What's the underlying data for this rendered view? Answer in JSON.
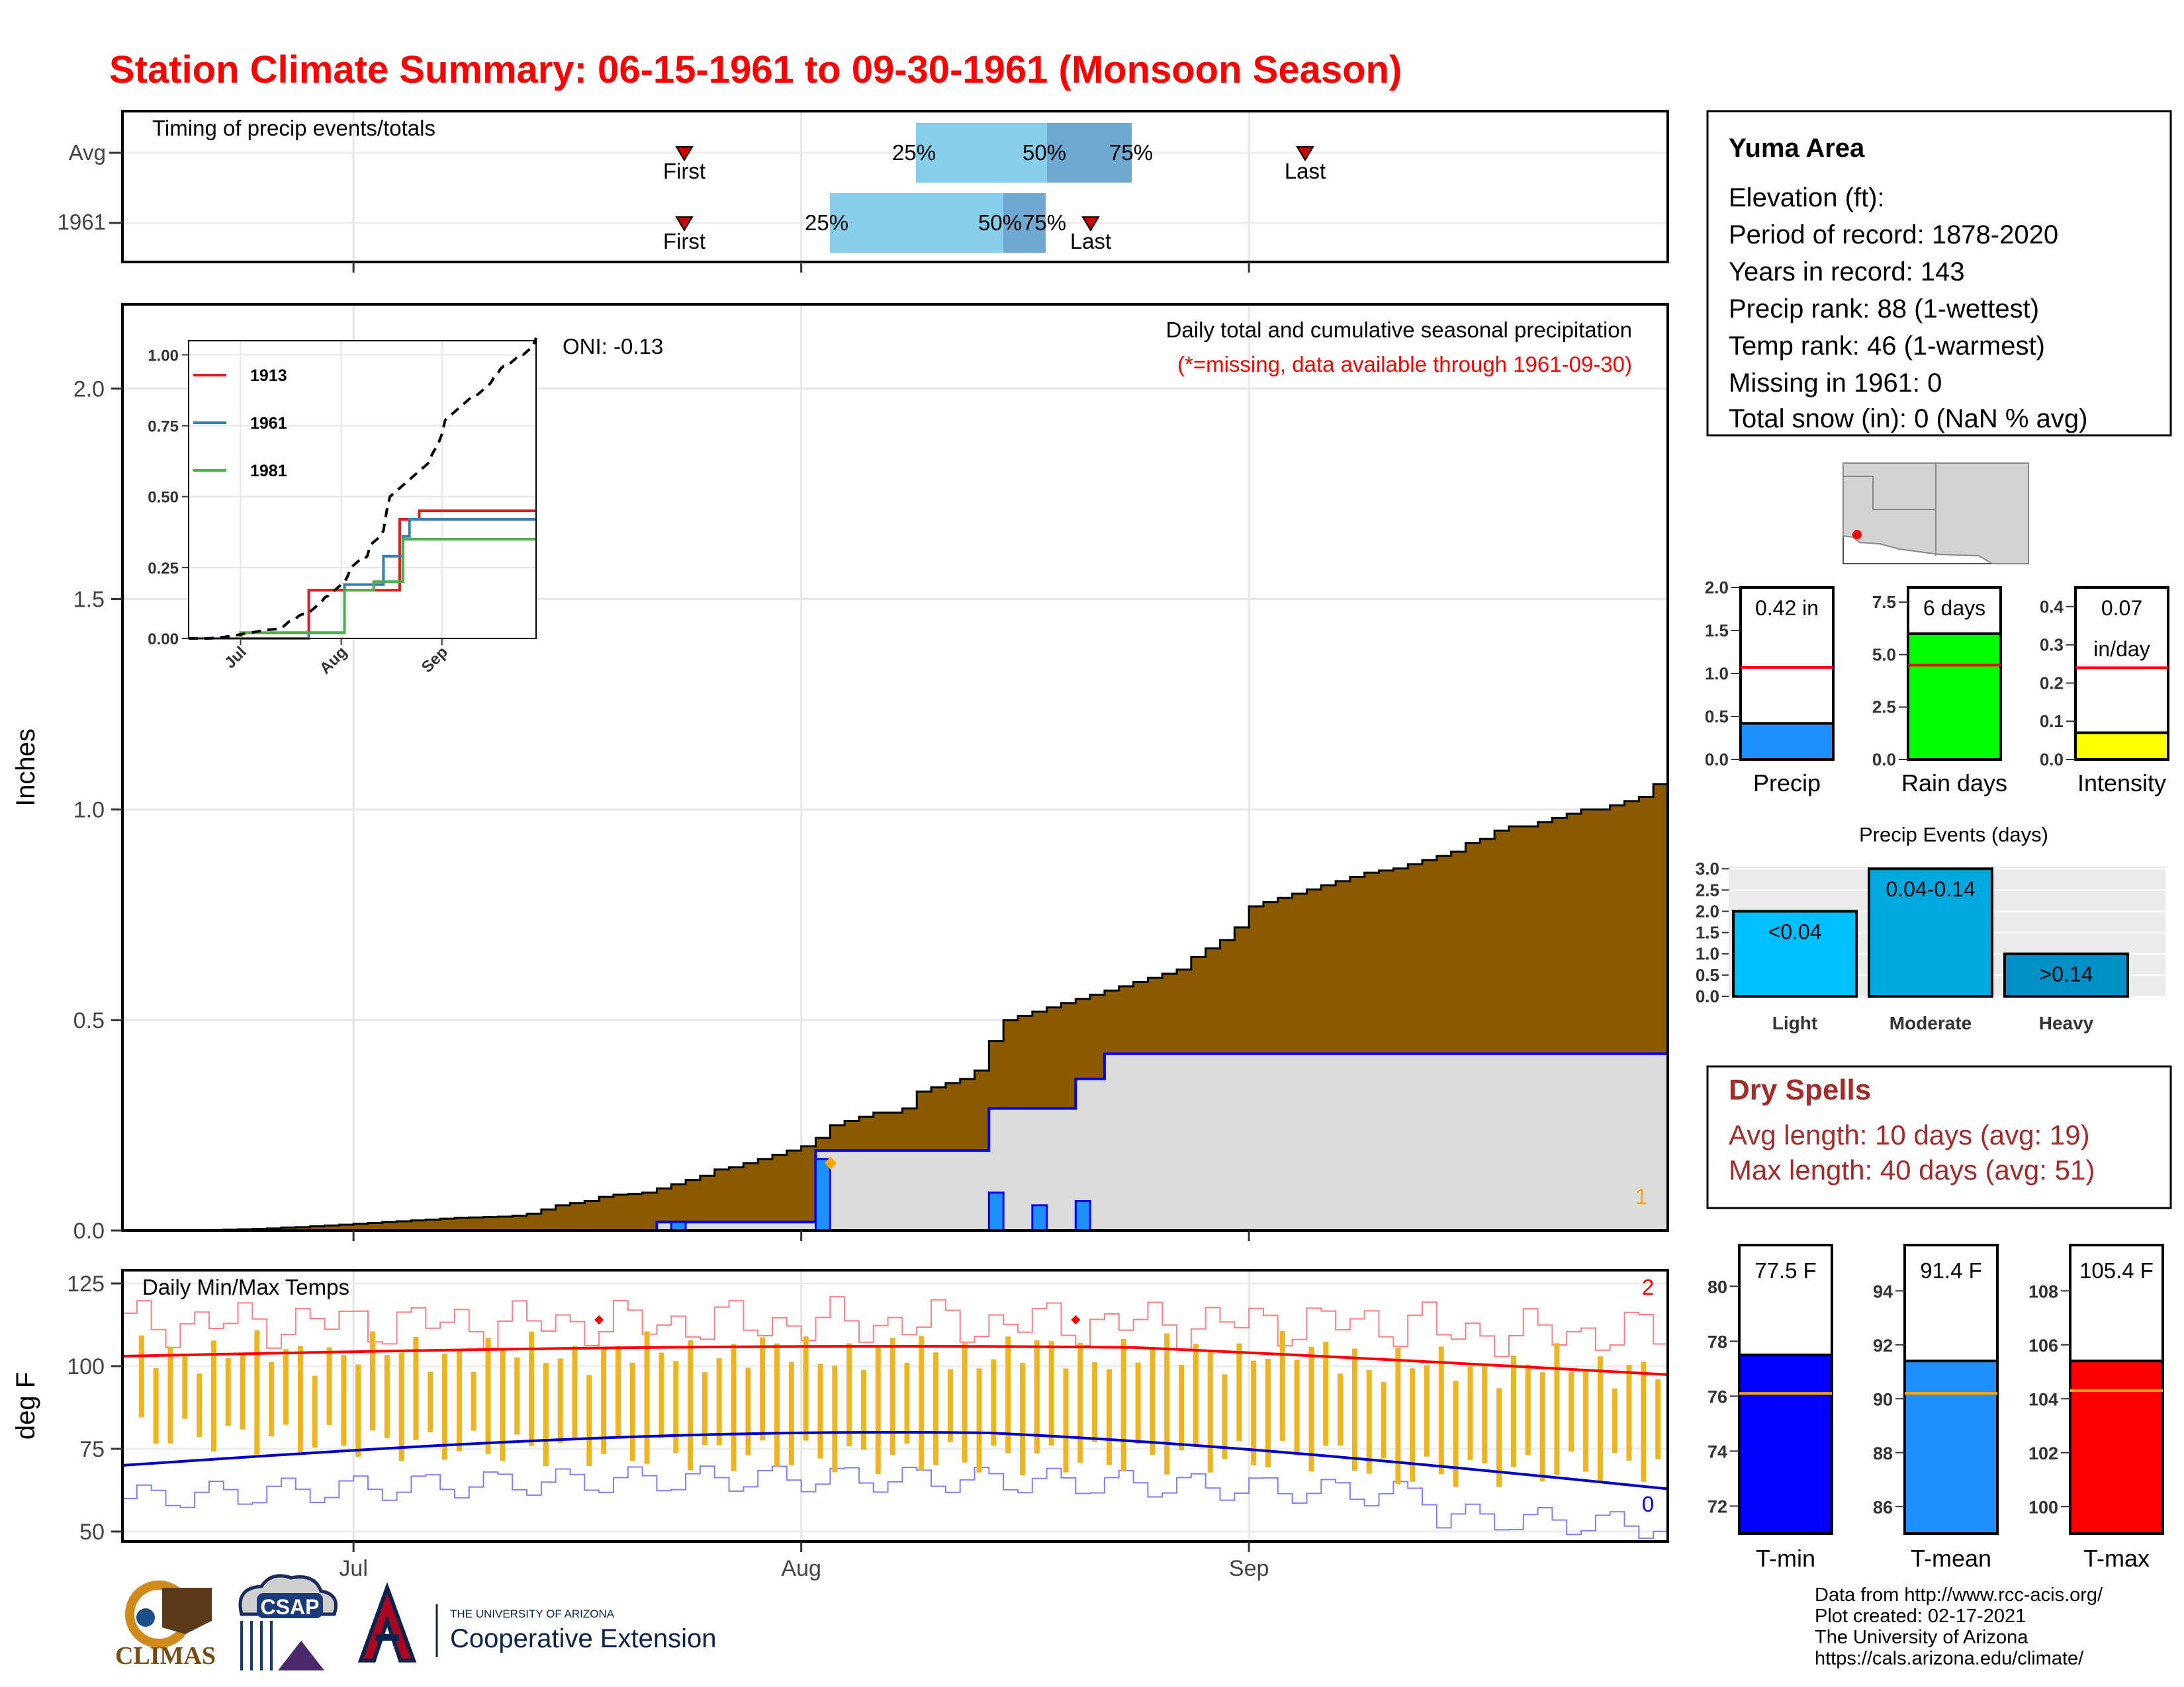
{
  "title": "Station Climate Summary: 06-15-1961 to 09-30-1961 (Monsoon Season)",
  "colors": {
    "title": "#ff0000",
    "precip_fill": "#8b5a00",
    "obs_fill": "#dcdcdc",
    "obs_line": "#0000ff",
    "daily_bar": "#1e90ff"
  },
  "timing_panel": {
    "title": "Timing of precip events/totals",
    "row_labels": [
      "Avg",
      "1961"
    ],
    "avg": {
      "first_label": "First",
      "last_label": "Last",
      "p25": "25%",
      "p50": "50%",
      "p75": "75%"
    },
    "y1961": {
      "first_label": "First",
      "last_label": "Last",
      "p25": "25%",
      "p50": "50%",
      "p75": "75%"
    }
  },
  "main_panel": {
    "annotation_title": "Daily total and cumulative seasonal precipitation",
    "annotation_missing": "(*=missing, data available through 1961-09-30)",
    "oni": "ONI: -0.13",
    "y_label": "Inches",
    "y_ticks": [
      "0.0",
      "0.5",
      "1.0",
      "1.5",
      "2.0"
    ],
    "count_label": "1"
  },
  "inset": {
    "y_ticks": [
      "0.00",
      "0.25",
      "0.50",
      "0.75",
      "1.00"
    ],
    "x_ticks": [
      "Jul",
      "Aug",
      "Sep"
    ],
    "legend": [
      {
        "label": "1913",
        "color": "#e41a1c"
      },
      {
        "label": "1961",
        "color": "#377eb8"
      },
      {
        "label": "1981",
        "color": "#4daf4a"
      }
    ]
  },
  "temp_panel": {
    "title": "Daily Min/Max Temps",
    "y_label": "deg F",
    "y_ticks": [
      "50",
      "75",
      "100",
      "125"
    ],
    "x_ticks": [
      "Jul",
      "Aug",
      "Sep"
    ],
    "count_top": "2",
    "count_bottom": "0"
  },
  "station": {
    "name": "Yuma Area",
    "elevation": "Elevation (ft):",
    "period": "Period of record: 1878-2020",
    "years": "Years in record: 143",
    "precip_rank": "Precip rank: 88 (1-wettest)",
    "temp_rank": "Temp rank: 46 (1-warmest)",
    "missing": "Missing in 1961: 0",
    "snow": "Total snow (in): 0 (NaN % avg)"
  },
  "mini_bars": [
    {
      "label": "Precip",
      "value_text": "0.42 in",
      "value": 0.42,
      "avg": 1.07,
      "max": 2.0,
      "ticks": [
        "0.0",
        "0.5",
        "1.0",
        "1.5",
        "2.0"
      ],
      "color": "#1e90ff"
    },
    {
      "label": "Rain days",
      "value_text": "6 days",
      "value": 6,
      "avg": 4.5,
      "max": 8.2,
      "ticks": [
        "0.0",
        "2.5",
        "5.0",
        "7.5"
      ],
      "color": "#00ff00"
    },
    {
      "label": "Intensity",
      "value_text": "0.07",
      "value_text2": "in/day",
      "value": 0.07,
      "avg": 0.24,
      "max": 0.45,
      "ticks": [
        "0.0",
        "0.1",
        "0.2",
        "0.3",
        "0.4"
      ],
      "color": "#ffff00"
    }
  ],
  "precip_events": {
    "title": "Precip Events (days)",
    "categories": [
      "Light",
      "Moderate",
      "Heavy"
    ],
    "values": [
      2,
      3,
      1
    ],
    "labels": [
      "<0.04",
      "0.04-0.14",
      ">0.14"
    ],
    "colors": [
      "#00bfff",
      "#00a8e0",
      "#0090c8"
    ],
    "ticks": [
      "0.0",
      "0.5",
      "1.0",
      "1.5",
      "2.0",
      "2.5",
      "3.0"
    ]
  },
  "dry_spells": {
    "title": "Dry Spells",
    "avg_length": "Avg length: 10 days (avg: 19)",
    "max_length": "Max length: 40 days (avg: 51)"
  },
  "temp_bars": [
    {
      "label": "T-min",
      "value_text": "77.5 F",
      "value": 77.5,
      "avg": 76.1,
      "min": 71,
      "max": 81.5,
      "ticks": [
        "72",
        "74",
        "76",
        "78",
        "80"
      ],
      "color": "#0000ff"
    },
    {
      "label": "T-mean",
      "value_text": "91.4 F",
      "value": 91.4,
      "avg": 90.2,
      "min": 85,
      "max": 95.7,
      "ticks": [
        "86",
        "88",
        "90",
        "92",
        "94"
      ],
      "color": "#1e90ff"
    },
    {
      "label": "T-max",
      "value_text": "105.4 F",
      "value": 105.4,
      "avg": 104.3,
      "min": 99,
      "max": 109.7,
      "ticks": [
        "100",
        "102",
        "104",
        "106",
        "108"
      ],
      "color": "#ff0000"
    }
  ],
  "footer": {
    "line1": "Data from http://www.rcc-acis.org/",
    "line2": "Plot created: 02-17-2021",
    "line3": "The University of Arizona",
    "line4": "https://cals.arizona.edu/climate/"
  },
  "logos": {
    "climas": "CLIMAS",
    "csap": "CSAP",
    "ua_small": "THE UNIVERSITY OF ARIZONA",
    "ua_big": "Cooperative Extension"
  }
}
